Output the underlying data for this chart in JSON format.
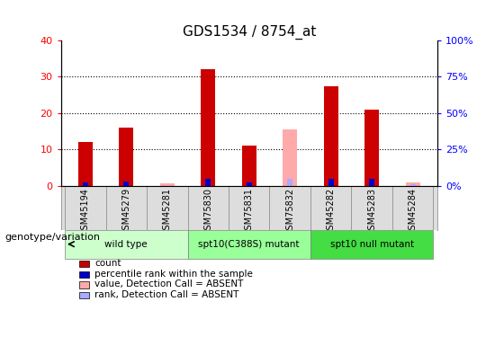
{
  "title": "GDS1534 / 8754_at",
  "samples": [
    "GSM45194",
    "GSM45279",
    "GSM45281",
    "GSM75830",
    "GSM75831",
    "GSM75832",
    "GSM45282",
    "GSM45283",
    "GSM45284"
  ],
  "groups": [
    {
      "label": "wild type",
      "color": "#ccffcc",
      "samples": [
        0,
        1,
        2
      ]
    },
    {
      "label": "spt10(C388S) mutant",
      "color": "#99ff99",
      "samples": [
        3,
        4,
        5
      ]
    },
    {
      "label": "spt10 null mutant",
      "color": "#44dd44",
      "samples": [
        6,
        7,
        8
      ]
    }
  ],
  "count_values": [
    12,
    16,
    0,
    32,
    11,
    0,
    27.5,
    21,
    0
  ],
  "rank_values": [
    2,
    3,
    0,
    5,
    2.5,
    4.5,
    5,
    5,
    0
  ],
  "absent_value": [
    0,
    0,
    0.7,
    0,
    0,
    15.5,
    0,
    0,
    0.9
  ],
  "absent_rank": [
    0,
    0,
    0,
    0,
    0,
    4.5,
    0,
    0,
    1.0
  ],
  "absent_flags": [
    false,
    false,
    true,
    false,
    false,
    true,
    false,
    false,
    true
  ],
  "ylim_left": [
    0,
    40
  ],
  "ylim_right": [
    0,
    100
  ],
  "yticks_left": [
    0,
    10,
    20,
    30,
    40
  ],
  "yticks_right": [
    0,
    25,
    50,
    75,
    100
  ],
  "ytick_labels_right": [
    "0%",
    "25%",
    "50%",
    "75%",
    "100%"
  ],
  "color_count": "#cc0000",
  "color_rank": "#0000cc",
  "color_absent_value": "#ffaaaa",
  "color_absent_rank": "#aaaaff",
  "bar_width": 0.35,
  "background_color": "#ffffff",
  "plot_bg_color": "#ffffff",
  "genotype_label": "genotype/variation",
  "legend_items": [
    {
      "label": "count",
      "color": "#cc0000"
    },
    {
      "label": "percentile rank within the sample",
      "color": "#0000cc"
    },
    {
      "label": "value, Detection Call = ABSENT",
      "color": "#ffaaaa"
    },
    {
      "label": "rank, Detection Call = ABSENT",
      "color": "#aaaaff"
    }
  ]
}
